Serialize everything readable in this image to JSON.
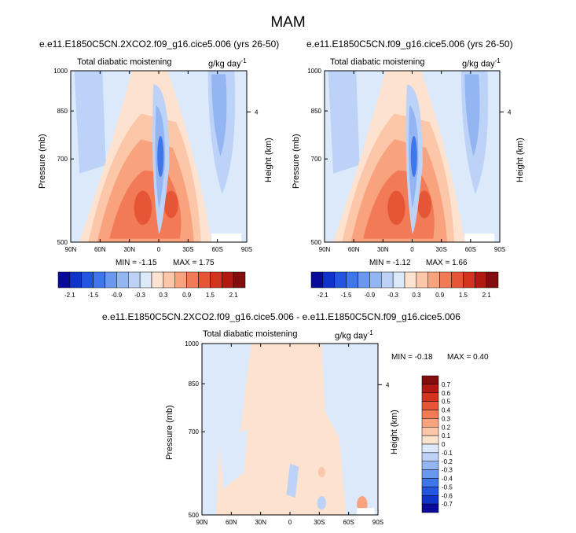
{
  "figure": {
    "title": "MAM"
  },
  "panels": [
    {
      "title": "e.e11.E1850C5CN.2XCO2.f09_g16.cice5.006 (yrs 26-50)",
      "left_label": "Total diabatic moistening",
      "units_label": "g/kg day",
      "units_exp": "-1",
      "stats_min": "MIN = -1.15",
      "stats_max": "MAX =  1.75"
    },
    {
      "title": "e.e11.E1850C5CN.f09_g16.cice5.006 (yrs 26-50)",
      "left_label": "Total diabatic moistening",
      "units_label": "g/kg day",
      "units_exp": "-1",
      "stats_min": "MIN = -1.12",
      "stats_max": "MAX =  1.66"
    },
    {
      "title": "e.e11.E1850C5CN.2XCO2.f09_g16.cice5.006 - e.e11.E1850C5CN.f09_g16.cice5.006",
      "left_label": "Total diabatic moistening",
      "units_label": "g/kg day",
      "units_exp": "-1",
      "stats_min": "MIN = -0.18",
      "stats_max": "MAX =  0.40"
    }
  ],
  "axes": {
    "ylabel": "Pressure (mb)",
    "y2label": "Height (km)",
    "y2ticks": [
      "4"
    ]
  },
  "colorbars": {
    "horizontal_labels": [
      "-2.1",
      "-1.5",
      "-0.9",
      "-0.3",
      "0.3",
      "0.9",
      "1.5",
      "2.1"
    ],
    "vertical_labels": [
      "0.7",
      "0.6",
      "0.5",
      "0.4",
      "0.3",
      "0.2",
      "0.1",
      "0",
      "-0.1",
      "-0.2",
      "-0.3",
      "-0.4",
      "-0.5",
      "-0.6",
      "-0.7"
    ]
  },
  "chart_data": [
    {
      "type": "heatmap",
      "subtype": "filled contour (latitude-pressure cross section)",
      "xlabel": "",
      "ylabel": "Pressure (mb)",
      "x_ticks": [
        "90N",
        "60N",
        "30N",
        "0",
        "30S",
        "60S",
        "90S"
      ],
      "y_ticks": [
        500,
        700,
        850,
        1000
      ],
      "ylim": [
        1000,
        500
      ],
      "y_scale": "log-pressure",
      "contour_levels": [
        -2.1,
        -1.8,
        -1.5,
        -1.2,
        -0.9,
        -0.6,
        -0.3,
        0,
        0.3,
        0.6,
        0.9,
        1.2,
        1.5,
        1.8,
        2.1
      ],
      "min": -1.15,
      "max": 1.75
    },
    {
      "type": "heatmap",
      "subtype": "filled contour (latitude-pressure cross section)",
      "xlabel": "",
      "ylabel": "Pressure (mb)",
      "x_ticks": [
        "90N",
        "60N",
        "30N",
        "0",
        "30S",
        "60S",
        "90S"
      ],
      "y_ticks": [
        500,
        700,
        850,
        1000
      ],
      "ylim": [
        1000,
        500
      ],
      "y_scale": "log-pressure",
      "contour_levels": [
        -2.1,
        -1.8,
        -1.5,
        -1.2,
        -0.9,
        -0.6,
        -0.3,
        0,
        0.3,
        0.6,
        0.9,
        1.2,
        1.5,
        1.8,
        2.1
      ],
      "min": -1.12,
      "max": 1.66
    },
    {
      "type": "heatmap",
      "subtype": "filled contour (latitude-pressure cross section)",
      "xlabel": "",
      "ylabel": "Pressure (mb)",
      "x_ticks": [
        "90N",
        "60N",
        "30N",
        "0",
        "30S",
        "60S",
        "90S"
      ],
      "y_ticks": [
        500,
        700,
        850,
        1000
      ],
      "ylim": [
        1000,
        500
      ],
      "y_scale": "log-pressure",
      "contour_levels": [
        -0.7,
        -0.6,
        -0.5,
        -0.4,
        -0.3,
        -0.2,
        -0.1,
        0,
        0.1,
        0.2,
        0.3,
        0.4,
        0.5,
        0.6,
        0.7
      ],
      "min": -0.18,
      "max": 0.4
    }
  ],
  "colors": {
    "palette_16": [
      "#0a0a9a",
      "#1033c9",
      "#2255e0",
      "#3f77ea",
      "#6a98ef",
      "#93b6f3",
      "#bcd3f7",
      "#dbe9fb",
      "#fde2cf",
      "#fcc6a8",
      "#f8a27e",
      "#f27a56",
      "#e65536",
      "#d1331f",
      "#b21812",
      "#850c0c"
    ],
    "plot_bg_blue": "#dbe9fb",
    "plot_bg_orange": "#fde2cf"
  }
}
